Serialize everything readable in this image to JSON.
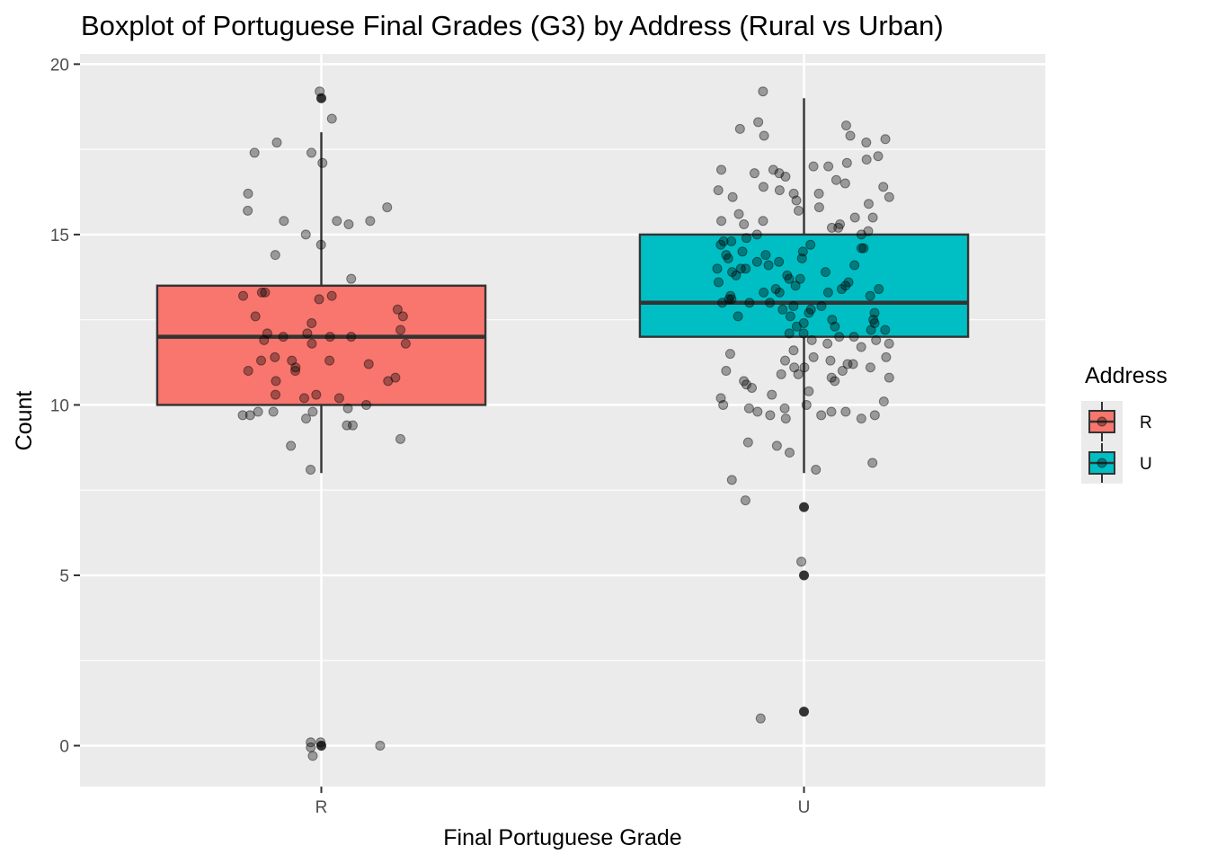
{
  "chart_data": {
    "type": "boxplot",
    "title": "Boxplot of Portuguese Final Grades (G3) by Address (Rural vs Urban)",
    "xlabel": "Final Portuguese Grade",
    "ylabel": "Count",
    "categories": [
      "R",
      "U"
    ],
    "ylim": [
      -1.2,
      20.3
    ],
    "yticks": [
      0,
      5,
      10,
      15,
      20
    ],
    "grid": true,
    "legend": {
      "title": "Address",
      "position": "right",
      "entries": [
        {
          "label": "R",
          "color": "#F8766D"
        },
        {
          "label": "U",
          "color": "#00BFC4"
        }
      ]
    },
    "boxes": [
      {
        "name": "R",
        "color": "#F8766D",
        "q1": 10,
        "median": 12,
        "q3": 13.5,
        "whisker_low": 8,
        "whisker_high": 18,
        "outliers": [
          19,
          0
        ]
      },
      {
        "name": "U",
        "color": "#00BFC4",
        "q1": 12,
        "median": 13,
        "q3": 15,
        "whisker_low": 8,
        "whisker_high": 19,
        "outliers": [
          7,
          5,
          1
        ]
      }
    ],
    "jitter": [
      {
        "name": "R",
        "values": [
          19.2,
          18.4,
          17.4,
          17.7,
          17.4,
          17.1,
          16.2,
          15.8,
          15.4,
          15.0,
          15.4,
          15.4,
          15.3,
          15.7,
          14.7,
          14.4,
          13.7,
          13.3,
          13.2,
          13.1,
          13.3,
          13.2,
          12.8,
          12.6,
          12.6,
          12.4,
          12.2,
          12.1,
          12.1,
          12.0,
          12.0,
          12.0,
          11.9,
          11.8,
          11.8,
          11.4,
          11.3,
          11.3,
          11.3,
          11.2,
          11.1,
          11.0,
          11.0,
          10.8,
          10.7,
          10.7,
          10.3,
          10.3,
          10.2,
          10.2,
          10.0,
          9.9,
          9.8,
          9.8,
          9.8,
          9.7,
          9.7,
          9.6,
          9.4,
          9.4,
          9.0,
          8.8,
          8.1,
          0.1,
          0.1,
          0.0,
          -0.3,
          -0.05
        ]
      },
      {
        "name": "U",
        "values": [
          19.2,
          18.3,
          18.2,
          18.1,
          17.9,
          17.9,
          17.7,
          17.8,
          17.3,
          17.2,
          17.1,
          17.0,
          17.0,
          16.9,
          16.9,
          16.8,
          16.8,
          16.7,
          16.6,
          16.5,
          16.4,
          16.4,
          16.3,
          16.3,
          16.2,
          16.2,
          16.1,
          16.1,
          16.0,
          15.9,
          15.8,
          15.7,
          15.6,
          15.5,
          15.5,
          15.4,
          15.4,
          15.3,
          15.3,
          15.2,
          15.2,
          15.1,
          15.0,
          15.0,
          14.9,
          14.8,
          14.8,
          14.7,
          14.7,
          14.6,
          14.6,
          14.5,
          14.5,
          14.4,
          14.4,
          14.3,
          14.3,
          14.2,
          14.2,
          14.1,
          14.1,
          14.0,
          14.0,
          14.0,
          13.9,
          13.9,
          13.8,
          13.8,
          13.7,
          13.7,
          13.6,
          13.6,
          13.5,
          13.5,
          13.4,
          13.4,
          13.4,
          13.3,
          13.3,
          13.3,
          13.2,
          13.2,
          13.1,
          13.1,
          13.0,
          13.0,
          13.0,
          12.9,
          12.9,
          12.8,
          12.8,
          12.7,
          12.7,
          12.6,
          12.6,
          12.5,
          12.5,
          12.4,
          12.4,
          12.3,
          12.3,
          12.2,
          12.2,
          12.1,
          12.1,
          12.0,
          12.0,
          11.9,
          11.9,
          11.8,
          11.8,
          11.7,
          11.6,
          11.5,
          11.4,
          11.4,
          11.3,
          11.3,
          11.2,
          11.2,
          11.1,
          11.1,
          11.1,
          11.0,
          11.0,
          10.9,
          10.9,
          10.8,
          10.8,
          10.7,
          10.7,
          10.6,
          10.5,
          10.4,
          10.3,
          10.2,
          10.1,
          10.0,
          10.0,
          9.9,
          9.9,
          9.8,
          9.8,
          9.8,
          9.7,
          9.7,
          9.7,
          9.6,
          9.6,
          8.9,
          8.8,
          8.6,
          8.3,
          8.1,
          7.8,
          7.2,
          5.4,
          0.8
        ]
      }
    ]
  }
}
